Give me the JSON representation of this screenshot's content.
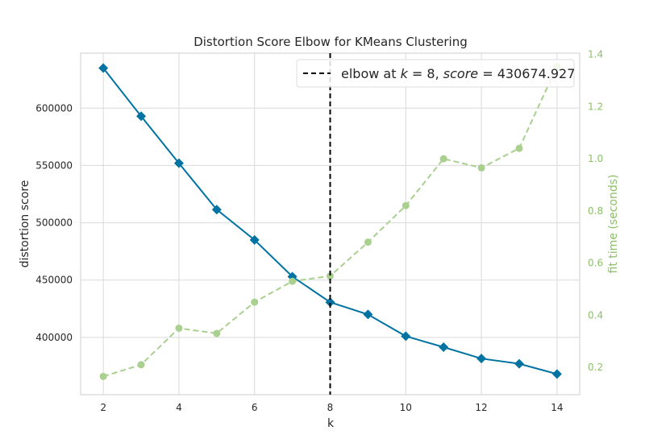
{
  "chart_data": {
    "type": "line",
    "title": "Distortion Score Elbow for KMeans Clustering",
    "xlabel": "k",
    "ylabel": "distortion score",
    "y2label": "fit time (seconds)",
    "x": [
      2,
      3,
      4,
      5,
      6,
      7,
      8,
      9,
      10,
      11,
      12,
      13,
      14
    ],
    "xlim": [
      1.4,
      14.6
    ],
    "ylim": [
      350000,
      648000
    ],
    "y2lim": [
      0.095,
      1.405
    ],
    "xticks": [
      "2",
      "4",
      "6",
      "8",
      "10",
      "12",
      "14"
    ],
    "yticks": [
      "400000",
      "450000",
      "500000",
      "550000",
      "600000"
    ],
    "y2ticks": [
      "0.2",
      "0.4",
      "0.6",
      "0.8",
      "1.0",
      "1.2",
      "1.4"
    ],
    "series": [
      {
        "axis": "left",
        "color": "#0173a2",
        "marker": "diamond",
        "values": [
          635000,
          593000,
          552000,
          511500,
          485000,
          453000,
          430675,
          420000,
          401000,
          391500,
          381500,
          377000,
          368000
        ]
      },
      {
        "axis": "right",
        "color": "#a9d08e",
        "marker": "circle",
        "dashed": true,
        "values": [
          0.165,
          0.21,
          0.35,
          0.33,
          0.45,
          0.53,
          0.55,
          0.68,
          0.82,
          1.0,
          0.965,
          1.04,
          1.355
        ]
      }
    ],
    "elbow": {
      "k": 8,
      "score": 430674.927,
      "legend_prefix": "elbow at ",
      "legend_k_var": "k",
      "legend_eq1": " = 8, ",
      "legend_score_var": "score",
      "legend_eq2": " = 430674.927"
    },
    "grid": true,
    "legend_position": "top-right"
  }
}
